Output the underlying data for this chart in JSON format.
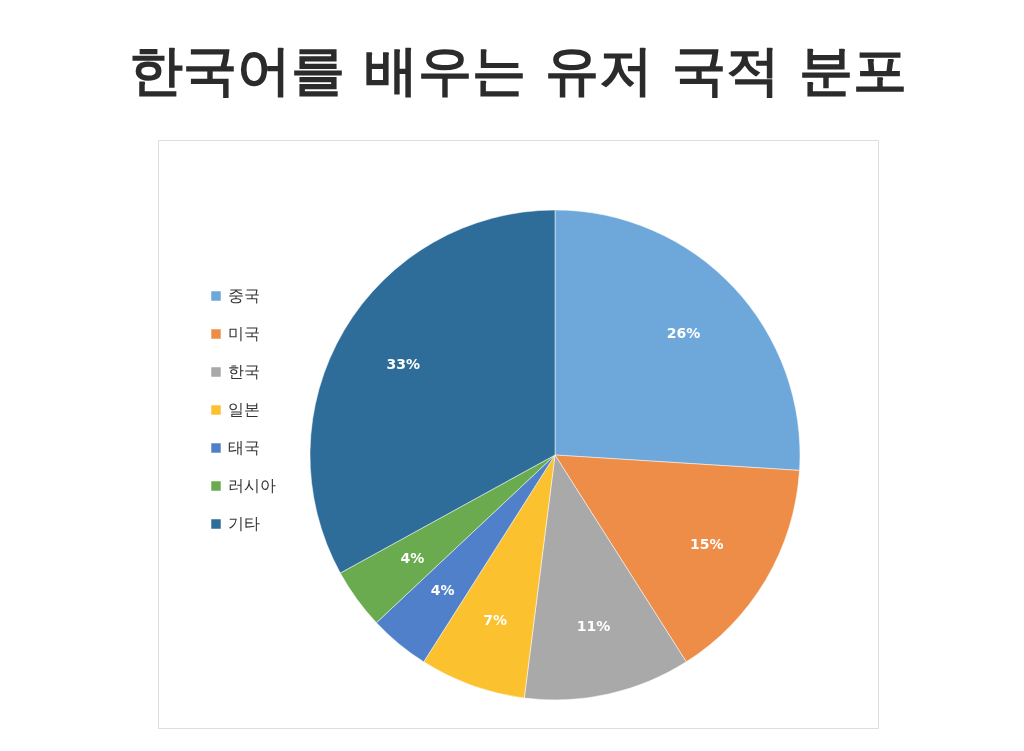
{
  "chart_data": {
    "type": "pie",
    "title": "한국어를 배우는 유저 국적 분포",
    "categories": [
      "중국",
      "미국",
      "한국",
      "일본",
      "태국",
      "러시아",
      "기타"
    ],
    "values": [
      26,
      15,
      11,
      7,
      4,
      4,
      33
    ],
    "colors": [
      "#6ea8da",
      "#ee8d48",
      "#a9a9a9",
      "#fbc12e",
      "#4f80c9",
      "#6aab4f",
      "#2e6d99"
    ],
    "value_labels": [
      "26%",
      "15%",
      "11%",
      "7%",
      "4%",
      "4%",
      "33%"
    ],
    "legend": "left"
  }
}
